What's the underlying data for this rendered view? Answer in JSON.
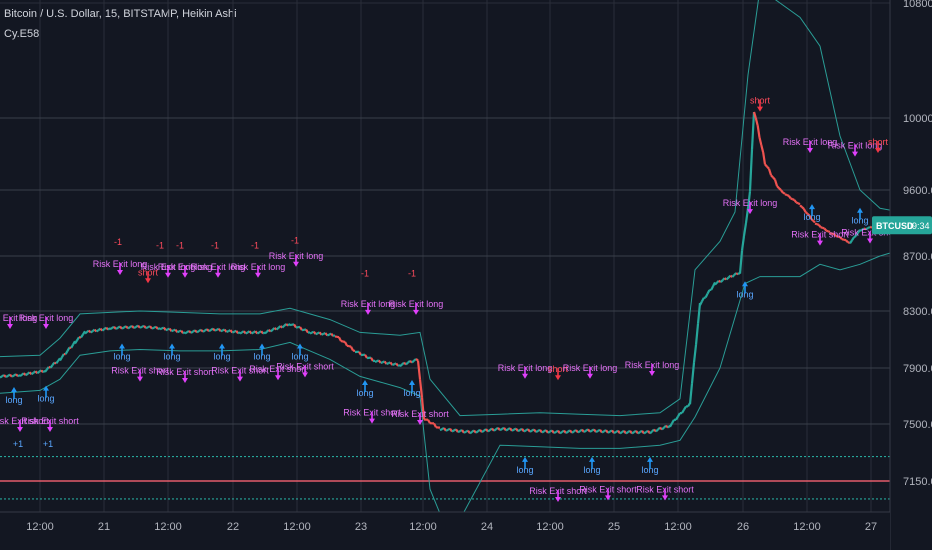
{
  "header": {
    "title": "Bitcoin / U.S. Dollar, 15, BITSTAMP, Heikin Ashi",
    "study": "Cy.E58"
  },
  "colors": {
    "background": "#131722",
    "grid": "#2a2e39",
    "axis_text": "#b2b5be",
    "bull": "#26a69a",
    "bear": "#ef5350",
    "band": "#2a9d96",
    "long_arrow": "#2196f3",
    "short_arrow": "#f23645",
    "exit_arrow": "#e040fb",
    "long_text": "#5aa7ff",
    "short_text": "#ff4b5c",
    "exit_text": "#e472f7",
    "hline_red": "#e35c6a",
    "hline_teal": "#26a69a",
    "price_tag_bg": "#26a69a"
  },
  "price_tag": {
    "symbol": "BTCUSD",
    "countdown": "09:34"
  },
  "chart_data": {
    "type": "candlestick",
    "chart_style": "Heikin Ashi",
    "interval": "15",
    "x_ticks": [
      "12:00",
      "21",
      "12:00",
      "22",
      "12:00",
      "23",
      "12:00",
      "24",
      "12:00",
      "25",
      "12:00",
      "26",
      "12:00",
      "27"
    ],
    "y_ticks": [
      10800.0,
      10000.0,
      9600.0,
      8700.0,
      8300.0,
      7900.0,
      7500.0,
      7150.0
    ],
    "ylim": [
      7000,
      11000
    ],
    "grid": true,
    "horizontal_lines": [
      {
        "color": "red",
        "value": 7150
      },
      {
        "color": "teal",
        "value": 7300
      },
      {
        "color": "teal",
        "value": 7040
      }
    ],
    "price_path": [
      [
        0,
        7840
      ],
      [
        20,
        7850
      ],
      [
        45,
        7880
      ],
      [
        60,
        7960
      ],
      [
        75,
        8080
      ],
      [
        85,
        8150
      ],
      [
        110,
        8180
      ],
      [
        140,
        8190
      ],
      [
        160,
        8180
      ],
      [
        185,
        8150
      ],
      [
        215,
        8170
      ],
      [
        240,
        8150
      ],
      [
        265,
        8150
      ],
      [
        290,
        8210
      ],
      [
        310,
        8150
      ],
      [
        335,
        8130
      ],
      [
        355,
        8020
      ],
      [
        375,
        7950
      ],
      [
        400,
        7920
      ],
      [
        418,
        7960
      ],
      [
        424,
        7540
      ],
      [
        440,
        7470
      ],
      [
        470,
        7450
      ],
      [
        500,
        7470
      ],
      [
        530,
        7460
      ],
      [
        560,
        7450
      ],
      [
        590,
        7460
      ],
      [
        620,
        7450
      ],
      [
        650,
        7450
      ],
      [
        670,
        7490
      ],
      [
        690,
        7650
      ],
      [
        700,
        8350
      ],
      [
        715,
        8500
      ],
      [
        740,
        8580
      ],
      [
        748,
        9350
      ],
      [
        754,
        10050
      ],
      [
        765,
        9750
      ],
      [
        785,
        9550
      ],
      [
        800,
        9400
      ],
      [
        815,
        9150
      ],
      [
        830,
        9020
      ],
      [
        850,
        8880
      ],
      [
        860,
        9050
      ],
      [
        878,
        9120
      ],
      [
        890,
        9120
      ]
    ],
    "upper_band": [
      [
        0,
        7980
      ],
      [
        40,
        7990
      ],
      [
        60,
        8110
      ],
      [
        80,
        8280
      ],
      [
        110,
        8290
      ],
      [
        140,
        8300
      ],
      [
        180,
        8290
      ],
      [
        220,
        8280
      ],
      [
        260,
        8280
      ],
      [
        290,
        8320
      ],
      [
        330,
        8240
      ],
      [
        360,
        8150
      ],
      [
        400,
        8130
      ],
      [
        420,
        8150
      ],
      [
        430,
        7820
      ],
      [
        460,
        7560
      ],
      [
        500,
        7570
      ],
      [
        540,
        7580
      ],
      [
        580,
        7570
      ],
      [
        620,
        7560
      ],
      [
        660,
        7580
      ],
      [
        680,
        7680
      ],
      [
        695,
        8600
      ],
      [
        720,
        8900
      ],
      [
        735,
        9300
      ],
      [
        748,
        10300
      ],
      [
        760,
        10900
      ],
      [
        780,
        10800
      ],
      [
        800,
        10700
      ],
      [
        820,
        10500
      ],
      [
        840,
        9900
      ],
      [
        860,
        9600
      ],
      [
        880,
        9350
      ],
      [
        900,
        9300
      ]
    ],
    "lower_band": [
      [
        0,
        7720
      ],
      [
        40,
        7740
      ],
      [
        60,
        7820
      ],
      [
        80,
        7990
      ],
      [
        110,
        8020
      ],
      [
        140,
        8030
      ],
      [
        180,
        8020
      ],
      [
        220,
        8020
      ],
      [
        260,
        8030
      ],
      [
        290,
        8080
      ],
      [
        330,
        7960
      ],
      [
        360,
        7840
      ],
      [
        400,
        7760
      ],
      [
        420,
        7700
      ],
      [
        430,
        7100
      ],
      [
        450,
        6800
      ],
      [
        500,
        7370
      ],
      [
        540,
        7360
      ],
      [
        580,
        7350
      ],
      [
        620,
        7350
      ],
      [
        660,
        7370
      ],
      [
        680,
        7400
      ],
      [
        695,
        7550
      ],
      [
        720,
        7900
      ],
      [
        745,
        8500
      ],
      [
        760,
        8550
      ],
      [
        780,
        8550
      ],
      [
        800,
        8550
      ],
      [
        820,
        8640
      ],
      [
        840,
        8600
      ],
      [
        860,
        8640
      ],
      [
        880,
        8700
      ],
      [
        900,
        8780
      ]
    ],
    "signals": [
      {
        "x": 10,
        "y": 8230,
        "text": "Risk Exit long",
        "kind": "exit"
      },
      {
        "x": 14,
        "y": 7650,
        "text": "long",
        "kind": "long"
      },
      {
        "x": 20,
        "y": 7500,
        "text": "Risk Exit short",
        "kind": "exit"
      },
      {
        "x": 18,
        "y": 7360,
        "text": "+1",
        "kind": "long"
      },
      {
        "x": 46,
        "y": 8230,
        "text": "Risk Exit long",
        "kind": "exit"
      },
      {
        "x": 46,
        "y": 7660,
        "text": "long",
        "kind": "long"
      },
      {
        "x": 50,
        "y": 7500,
        "text": "Risk Exit short",
        "kind": "exit"
      },
      {
        "x": 48,
        "y": 7360,
        "text": "+1",
        "kind": "long"
      },
      {
        "x": 120,
        "y": 8620,
        "text": "Risk Exit long",
        "kind": "exit"
      },
      {
        "x": 118,
        "y": 8850,
        "text": "-1",
        "kind": "short"
      },
      {
        "x": 122,
        "y": 7960,
        "text": "long",
        "kind": "long"
      },
      {
        "x": 140,
        "y": 7860,
        "text": "Risk Exit short",
        "kind": "exit"
      },
      {
        "x": 148,
        "y": 8560,
        "text": "short",
        "kind": "short"
      },
      {
        "x": 160,
        "y": 8800,
        "text": "-1",
        "kind": "short"
      },
      {
        "x": 168,
        "y": 8600,
        "text": "Risk Exit long",
        "kind": "exit"
      },
      {
        "x": 172,
        "y": 7960,
        "text": "long",
        "kind": "long"
      },
      {
        "x": 185,
        "y": 7850,
        "text": "Risk Exit short",
        "kind": "exit"
      },
      {
        "x": 180,
        "y": 8800,
        "text": "-1",
        "kind": "short"
      },
      {
        "x": 185,
        "y": 8600,
        "text": "Risk Exit long",
        "kind": "exit"
      },
      {
        "x": 215,
        "y": 8800,
        "text": "-1",
        "kind": "short"
      },
      {
        "x": 218,
        "y": 8600,
        "text": "Risk Exit long",
        "kind": "exit"
      },
      {
        "x": 222,
        "y": 7960,
        "text": "long",
        "kind": "long"
      },
      {
        "x": 240,
        "y": 7860,
        "text": "Risk Exit short",
        "kind": "exit"
      },
      {
        "x": 255,
        "y": 8800,
        "text": "-1",
        "kind": "short"
      },
      {
        "x": 258,
        "y": 8600,
        "text": "Risk Exit long",
        "kind": "exit"
      },
      {
        "x": 262,
        "y": 7960,
        "text": "long",
        "kind": "long"
      },
      {
        "x": 278,
        "y": 7870,
        "text": "Risk Exit short",
        "kind": "exit"
      },
      {
        "x": 295,
        "y": 8870,
        "text": "-1",
        "kind": "short"
      },
      {
        "x": 296,
        "y": 8680,
        "text": "Risk Exit long",
        "kind": "exit"
      },
      {
        "x": 300,
        "y": 7960,
        "text": "long",
        "kind": "long"
      },
      {
        "x": 305,
        "y": 7890,
        "text": "Risk Exit short",
        "kind": "exit"
      },
      {
        "x": 365,
        "y": 8550,
        "text": "-1",
        "kind": "short"
      },
      {
        "x": 368,
        "y": 8330,
        "text": "Risk Exit long",
        "kind": "exit"
      },
      {
        "x": 365,
        "y": 7700,
        "text": "long",
        "kind": "long"
      },
      {
        "x": 372,
        "y": 7560,
        "text": "Risk Exit short",
        "kind": "exit"
      },
      {
        "x": 412,
        "y": 8550,
        "text": "-1",
        "kind": "short"
      },
      {
        "x": 416,
        "y": 8330,
        "text": "Risk Exit long",
        "kind": "exit"
      },
      {
        "x": 412,
        "y": 7700,
        "text": "long",
        "kind": "long"
      },
      {
        "x": 420,
        "y": 7550,
        "text": "Risk Exit short",
        "kind": "exit"
      },
      {
        "x": 525,
        "y": 7880,
        "text": "Risk Exit long",
        "kind": "exit"
      },
      {
        "x": 525,
        "y": 7200,
        "text": "long",
        "kind": "long"
      },
      {
        "x": 558,
        "y": 7070,
        "text": "Risk Exit short",
        "kind": "exit"
      },
      {
        "x": 558,
        "y": 7870,
        "text": "short",
        "kind": "short"
      },
      {
        "x": 590,
        "y": 7880,
        "text": "Risk Exit long",
        "kind": "exit"
      },
      {
        "x": 592,
        "y": 7200,
        "text": "long",
        "kind": "long"
      },
      {
        "x": 608,
        "y": 7080,
        "text": "Risk Exit short",
        "kind": "exit"
      },
      {
        "x": 652,
        "y": 7900,
        "text": "Risk Exit long",
        "kind": "exit"
      },
      {
        "x": 650,
        "y": 7200,
        "text": "long",
        "kind": "long"
      },
      {
        "x": 665,
        "y": 7080,
        "text": "Risk Exit short",
        "kind": "exit"
      },
      {
        "x": 750,
        "y": 9380,
        "text": "Risk Exit long",
        "kind": "exit"
      },
      {
        "x": 760,
        "y": 10100,
        "text": "short",
        "kind": "short"
      },
      {
        "x": 745,
        "y": 8400,
        "text": "long",
        "kind": "long"
      },
      {
        "x": 810,
        "y": 9850,
        "text": "Risk Exit long",
        "kind": "exit"
      },
      {
        "x": 812,
        "y": 9190,
        "text": "long",
        "kind": "long"
      },
      {
        "x": 820,
        "y": 8950,
        "text": "Risk Exit short",
        "kind": "exit"
      },
      {
        "x": 855,
        "y": 9830,
        "text": "Risk Exit long",
        "kind": "exit"
      },
      {
        "x": 878,
        "y": 9850,
        "text": "short",
        "kind": "short"
      },
      {
        "x": 860,
        "y": 9140,
        "text": "long",
        "kind": "long"
      },
      {
        "x": 870,
        "y": 8980,
        "text": "Risk Exit short",
        "kind": "exit"
      }
    ]
  }
}
